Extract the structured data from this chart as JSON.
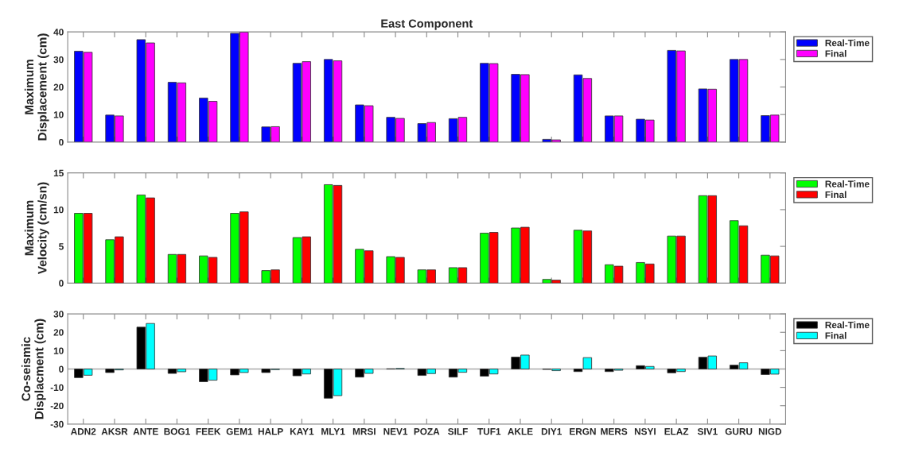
{
  "chart_data": [
    {
      "type": "bar",
      "title": "East Component",
      "ylabel": "Maximum\nDisplacement (cm)",
      "categories": [
        null,
        null,
        null,
        null,
        null,
        null,
        null,
        null,
        null,
        null,
        null,
        null,
        null,
        null,
        null,
        null,
        null,
        null,
        null,
        null,
        null,
        null,
        null
      ],
      "series": [
        {
          "name": "Real-Time",
          "color": "#0000ff",
          "values": [
            33.0,
            9.8,
            37.2,
            21.7,
            16.0,
            39.5,
            5.5,
            28.6,
            30.0,
            13.5,
            9.0,
            6.7,
            8.5,
            28.6,
            24.6,
            1.0,
            24.4,
            9.5,
            8.3,
            33.3,
            19.3,
            30.0,
            9.6
          ]
        },
        {
          "name": "Final",
          "color": "#ff00ff",
          "values": [
            32.6,
            9.5,
            36.0,
            21.5,
            14.8,
            39.9,
            5.6,
            29.2,
            29.5,
            13.2,
            8.6,
            7.1,
            9.0,
            28.5,
            24.5,
            0.8,
            23.1,
            9.5,
            8.0,
            33.1,
            19.2,
            30.0,
            9.8
          ]
        }
      ],
      "ylim": [
        0,
        40
      ],
      "yticks": [
        0,
        10,
        20,
        30,
        40
      ],
      "tick_labels": "y",
      "legend": "top right"
    },
    {
      "type": "bar",
      "ylabel": "Maximum\nVelocity (cm/sn)",
      "categories": [
        null,
        null,
        null,
        null,
        null,
        null,
        null,
        null,
        null,
        null,
        null,
        null,
        null,
        null,
        null,
        null,
        null,
        null,
        null,
        null,
        null,
        null,
        null
      ],
      "series": [
        {
          "name": "Real-Time",
          "color": "#00ff00",
          "values": [
            9.5,
            5.9,
            12.0,
            3.9,
            3.7,
            9.5,
            1.7,
            6.2,
            13.4,
            4.6,
            3.6,
            1.8,
            2.1,
            6.8,
            7.5,
            0.5,
            7.2,
            2.5,
            2.8,
            6.4,
            11.9,
            8.5,
            3.8
          ]
        },
        {
          "name": "Final",
          "color": "#ff0000",
          "values": [
            9.5,
            6.3,
            11.6,
            3.9,
            3.5,
            9.7,
            1.8,
            6.3,
            13.3,
            4.4,
            3.5,
            1.8,
            2.1,
            6.9,
            7.6,
            0.4,
            7.1,
            2.3,
            2.6,
            6.4,
            11.9,
            7.8,
            3.7
          ]
        }
      ],
      "ylim": [
        0,
        15
      ],
      "yticks": [
        0,
        5,
        10,
        15
      ],
      "tick_labels": "y",
      "legend": "top right"
    },
    {
      "type": "bar",
      "ylabel": "Co-seismic\nDisplacment (cm)",
      "categories": [
        "ADN2",
        "AKSR",
        "ANTE",
        "BOG1",
        "FEEK",
        "GEM1",
        "HALP",
        "KAY1",
        "MLY1",
        "MRSI",
        "NEV1",
        "POZA",
        "SILF",
        "TUF1",
        "AKLE",
        "DIY1",
        "ERGN",
        "MERS",
        "NSYI",
        "ELAZ",
        "SIV1",
        "GURU",
        "NIGD"
      ],
      "series": [
        {
          "name": "Real-Time",
          "color": "#000000",
          "values": [
            -4.7,
            -1.9,
            22.8,
            -2.4,
            -6.9,
            -3.2,
            -1.9,
            -3.7,
            -15.9,
            -4.4,
            0.1,
            -3.5,
            -4.4,
            -3.9,
            6.5,
            -0.2,
            -1.4,
            -1.4,
            1.8,
            -2.1,
            6.4,
            2.1,
            -3.0
          ]
        },
        {
          "name": "Final",
          "color": "#00ffff",
          "values": [
            -3.4,
            -0.5,
            24.8,
            -1.5,
            -6.1,
            -1.9,
            -0.3,
            -2.7,
            -14.5,
            -2.4,
            0.3,
            -2.5,
            -1.8,
            -2.7,
            7.6,
            -0.9,
            6.2,
            -0.7,
            1.4,
            -1.4,
            7.1,
            3.4,
            -2.8
          ]
        }
      ],
      "ylim": [
        -30,
        30
      ],
      "yticks": [
        -30,
        -20,
        -10,
        0,
        10,
        20,
        30
      ],
      "ref_lines": [
        {
          "axis": "y",
          "value": 0,
          "color": "#aaaaaa"
        }
      ],
      "legend": "top right"
    }
  ]
}
